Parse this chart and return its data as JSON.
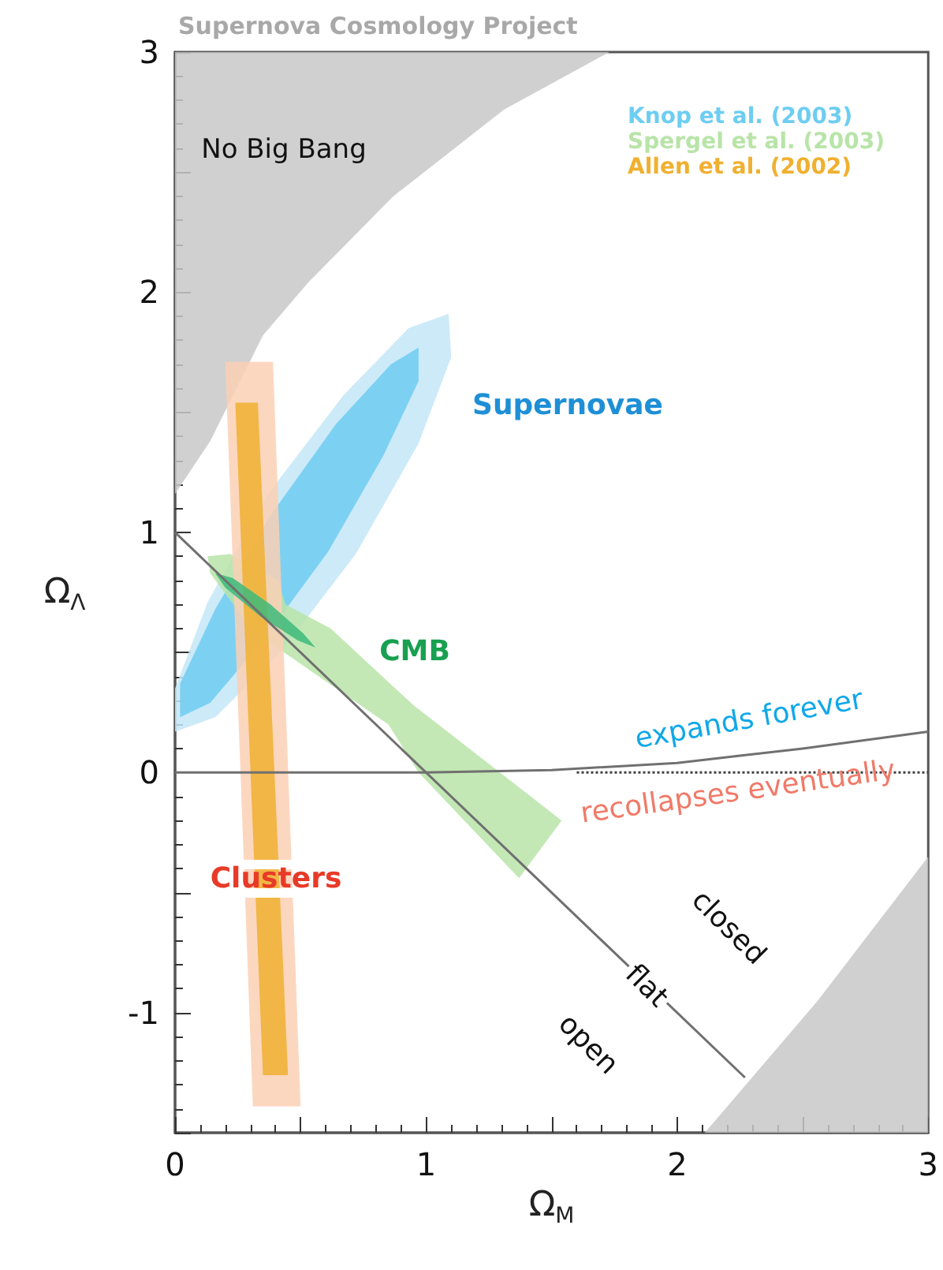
{
  "chart_data": {
    "type": "line",
    "title": "Supernova Cosmology Project",
    "xlabel": "Ω$_{M}$",
    "ylabel": "Ω$_{Λ}$",
    "xlim": [
      0,
      3
    ],
    "ylim": [
      -1.5,
      3
    ],
    "xticks": [
      0,
      {
        "value": 0.5,
        "label": null
      },
      1,
      {
        "value": 1.5,
        "label": null
      },
      2,
      {
        "value": 2.5,
        "label": null
      },
      3
    ],
    "yticks": [
      {
        "value": -1.5,
        "label": null
      },
      -1,
      {
        "value": -0.5,
        "label": null
      },
      0,
      {
        "value": 0.5,
        "label": null
      },
      1,
      {
        "value": 1.5,
        "label": null
      },
      2,
      {
        "value": 2.5,
        "label": null
      },
      3
    ],
    "legend": "top right",
    "marker": "none",
    "series": [
      {
        "type": "area",
        "color": "#c8c8c8",
        "x": [
          0,
          0.14,
          0.35,
          0.53,
          0.87,
          1.31,
          1.73,
          0
        ],
        "values": [
          1.16,
          1.38,
          1.82,
          2.04,
          2.4,
          2.76,
          3,
          3
        ]
      },
      {
        "type": "area",
        "color": "#c8c8c8",
        "x": [
          2.11,
          2.56,
          3,
          3,
          2.11
        ],
        "values": [
          -1.5,
          -0.95,
          -0.35,
          -1.5,
          -1.5
        ]
      },
      {
        "type": "area",
        "color": "#c4e6f7",
        "x": [
          1.09,
          1.1,
          0.97,
          0.72,
          0.42,
          0.16,
          0,
          0,
          0.13,
          0.37,
          0.67,
          0.93
        ],
        "values": [
          1.91,
          1.73,
          1.37,
          0.91,
          0.5,
          0.23,
          0.17,
          0.35,
          0.71,
          1.16,
          1.57,
          1.85
        ]
      },
      {
        "type": "area",
        "name": "Knop et al. (2003)",
        "color": "#6dcdf2",
        "x": [
          0.97,
          0.97,
          0.83,
          0.61,
          0.35,
          0.14,
          0.02,
          0.02,
          0.16,
          0.38,
          0.64,
          0.86
        ],
        "values": [
          1.77,
          1.63,
          1.32,
          0.92,
          0.55,
          0.29,
          0.23,
          0.37,
          0.68,
          1.07,
          1.45,
          1.7
        ]
      },
      {
        "type": "area",
        "name": "Spergel et al. (2003)",
        "color": "#b8e4a8",
        "x": [
          0.13,
          0.22,
          0.41,
          0.44,
          0.62,
          0.95,
          1.54,
          1.37,
          0.97,
          0.85,
          0.31,
          0.14
        ],
        "values": [
          0.9,
          0.91,
          0.8,
          0.7,
          0.6,
          0.28,
          -0.2,
          -0.44,
          0,
          0.2,
          0.59,
          0.83
        ]
      },
      {
        "type": "area",
        "color": "#fbd0b4",
        "x": [
          0.2,
          0.39,
          0.5,
          0.31
        ],
        "values": [
          1.71,
          1.71,
          -1.39,
          -1.39
        ]
      },
      {
        "type": "area",
        "name": "Allen et al. (2002)",
        "color": "#f0b030",
        "x": [
          0.24,
          0.33,
          0.45,
          0.35
        ],
        "values": [
          1.54,
          1.54,
          -1.26,
          -1.26
        ]
      },
      {
        "type": "area",
        "color": "#3dba7a",
        "x": [
          0.56,
          0.49,
          0.34,
          0.2,
          0.16,
          0.23,
          0.38,
          0.51
        ],
        "values": [
          0.52,
          0.55,
          0.65,
          0.77,
          0.83,
          0.81,
          0.7,
          0.58
        ]
      },
      {
        "type": "line",
        "color": "#707070",
        "x": [
          0,
          2.27
        ],
        "values": [
          1,
          -1.27
        ]
      },
      {
        "type": "line",
        "color": "#707070",
        "x": [
          0,
          1,
          1.5,
          2,
          2.25,
          2.5,
          3
        ],
        "values": [
          0,
          0,
          0.01,
          0.04,
          0.07,
          0.1,
          0.17
        ]
      },
      {
        "type": "line",
        "color": "#404040",
        "line_style": "dotted",
        "x": [
          1.6,
          3
        ],
        "values": [
          0,
          0
        ]
      }
    ],
    "annotations": [
      "No Big Bang",
      "Supernovae",
      "CMB",
      "Clusters",
      "expands forever",
      "recollapses eventually",
      "closed",
      "flat",
      "open"
    ]
  }
}
